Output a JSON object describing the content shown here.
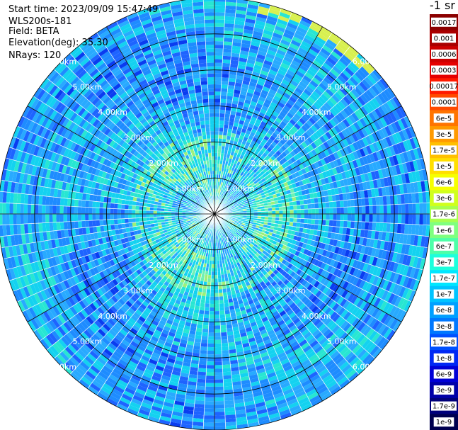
{
  "info": {
    "start_time": "Start time: 2023/09/09 15:47:49",
    "instrument": "WLS200s-181",
    "field": "Field: BETA",
    "elevation": "Elevation(deg): 35.30",
    "nrays": "NRays: 120"
  },
  "colorbar": {
    "title": "-1 sr",
    "labels": [
      "0.0017",
      "0.001",
      "0.0006",
      "0.0003",
      "0.00017",
      "0.0001",
      "6e-5",
      "3e-5",
      "1.7e-5",
      "1e-5",
      "6e-6",
      "3e-6",
      "1.7e-6",
      "1e-6",
      "6e-7",
      "3e-7",
      "1.7e-7",
      "1e-7",
      "6e-8",
      "3e-8",
      "1.7e-8",
      "1e-8",
      "6e-9",
      "3e-9",
      "1.7e-9",
      "1e-9"
    ],
    "colors": [
      "#8b0000",
      "#aa0000",
      "#cc0000",
      "#e50000",
      "#ff1a00",
      "#ff4a00",
      "#ff7400",
      "#ff9a00",
      "#ffc000",
      "#ffdf00",
      "#f6ff00",
      "#d0ff1c",
      "#a8ff4e",
      "#7fff7f",
      "#4effa8",
      "#1cffdc",
      "#00e6ff",
      "#00c4ff",
      "#00a0ff",
      "#0078ff",
      "#0050ff",
      "#0028f4",
      "#0000d6",
      "#0000a8",
      "#00007a",
      "#00004f"
    ]
  },
  "chart_data": {
    "type": "heatmap",
    "subtype": "ppi-polar",
    "field": "BETA",
    "units": "sr-1",
    "nrays": 120,
    "elevation_deg": 35.3,
    "range_km_max": 6.0,
    "range_rings_km": [
      1.0,
      2.0,
      3.0,
      4.0,
      5.0,
      6.0
    ],
    "ring_labels": [
      "1.00km",
      "2.00km",
      "3.00km",
      "4.00km",
      "5.00km",
      "6.00km"
    ],
    "spoke_angles_deg": [
      0,
      30,
      60,
      90,
      120,
      150,
      180,
      210,
      240,
      270,
      300,
      330
    ],
    "dominant_values": "mostly 1e-8 to 1e-7 (cyan to blue), occasional 6e-7 to 3e-6 (green/yellow)"
  }
}
